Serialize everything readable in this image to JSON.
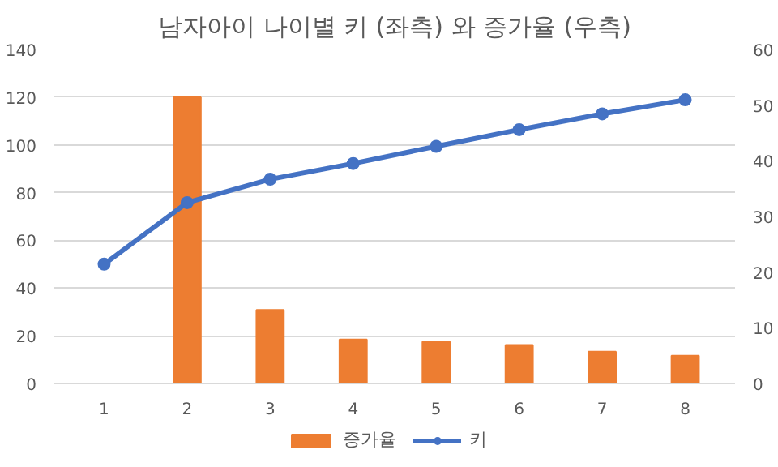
{
  "chart_data": {
    "type": "bar",
    "title": "남자아이 나이별 키 (좌측) 와 증가율 (우측)",
    "categories": [
      "1",
      "2",
      "3",
      "4",
      "5",
      "6",
      "7",
      "8"
    ],
    "series": [
      {
        "name": "증가율",
        "color": "#ed7d31",
        "type": "bar",
        "axis": "y2",
        "values": [
          null,
          51.4,
          13.2,
          7.9,
          7.5,
          6.9,
          5.7,
          5.0
        ]
      },
      {
        "name": "키",
        "color": "#4472c4",
        "type": "line",
        "values": [
          50,
          75.8,
          85.6,
          92.2,
          99.4,
          106.4,
          113,
          118.9
        ]
      }
    ],
    "ylim": [
      0,
      140
    ],
    "yticks": [
      0,
      20,
      40,
      60,
      80,
      100,
      120,
      140
    ],
    "y2lim": [
      0,
      60
    ],
    "y2ticks": [
      0,
      10,
      20,
      30,
      40,
      50,
      60
    ],
    "grid": "y",
    "legend": "bottom",
    "marker": "circle",
    "line_style": "solid"
  }
}
